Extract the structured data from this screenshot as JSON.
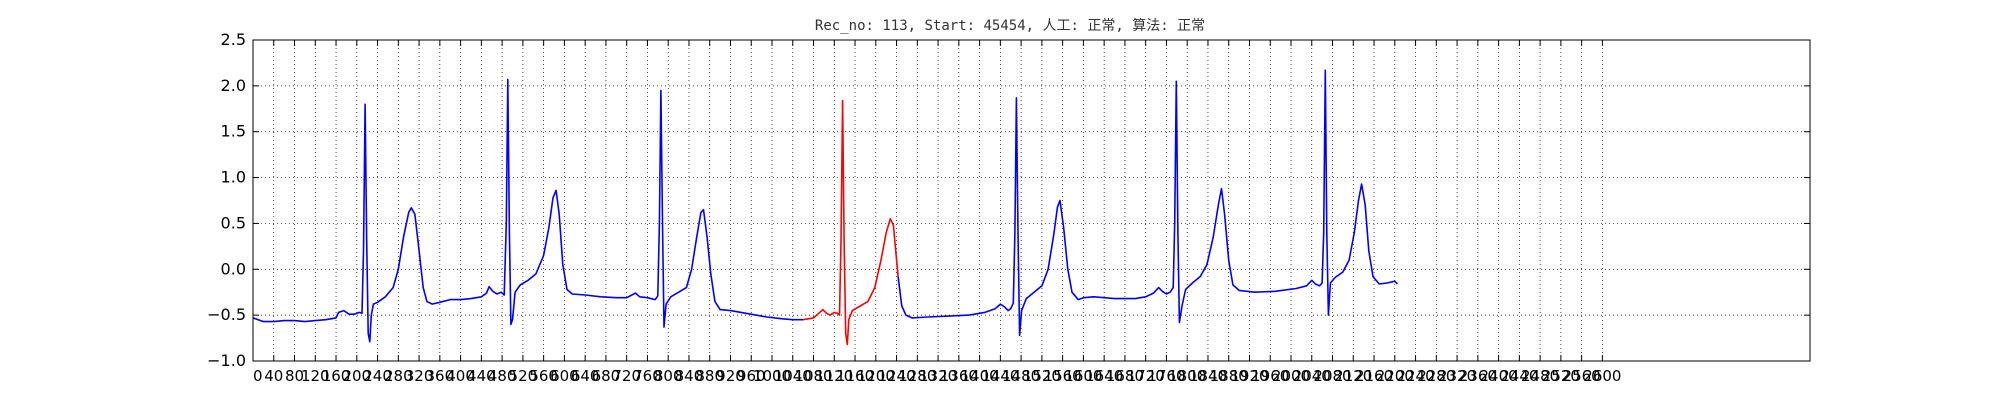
{
  "chart_data": {
    "type": "line",
    "title": "Rec_no: 113, Start: 45454, 人工: 正常, 算法: 正常",
    "xlabel": "",
    "ylabel": "",
    "xlim": [
      0,
      3000
    ],
    "ylim": [
      -1.0,
      2.5
    ],
    "grid": true,
    "grid_style": "dotted",
    "x_tick_values": [
      0,
      40,
      80,
      120,
      160,
      200,
      240,
      280,
      320,
      360,
      400,
      440,
      480,
      520,
      560,
      600,
      640,
      680,
      720,
      760,
      800,
      840,
      880,
      920,
      960,
      1000,
      1040,
      1080,
      1120,
      1160,
      1200,
      1240,
      1280,
      1320,
      1360,
      1400,
      1440,
      1480,
      1520,
      1560,
      1600,
      1640,
      1680,
      1720,
      1760,
      1800,
      1840,
      1880,
      1920,
      1960,
      2000,
      2040,
      2080,
      2120,
      2160,
      2200,
      2240,
      2280,
      2320,
      2360,
      2400,
      2440,
      2480,
      2520,
      2560,
      2600
    ],
    "y_ticks": [
      {
        "value": -1.0,
        "label": "−1.0"
      },
      {
        "value": -0.5,
        "label": "−0.5"
      },
      {
        "value": 0.0,
        "label": "0.0"
      },
      {
        "value": 0.5,
        "label": "0.5"
      },
      {
        "value": 1.0,
        "label": "1.0"
      },
      {
        "value": 1.5,
        "label": "1.5"
      },
      {
        "value": 2.0,
        "label": "2.0"
      },
      {
        "value": 2.5,
        "label": "2.5"
      }
    ],
    "series": [
      {
        "color": "#0000ff",
        "points": [
          [
            0,
            -0.53
          ],
          [
            20,
            -0.57
          ],
          [
            40,
            -0.57
          ],
          [
            60,
            -0.56
          ],
          [
            80,
            -0.56
          ],
          [
            100,
            -0.57
          ],
          [
            120,
            -0.56
          ],
          [
            140,
            -0.55
          ],
          [
            160,
            -0.53
          ],
          [
            165,
            -0.47
          ],
          [
            175,
            -0.45
          ],
          [
            185,
            -0.49
          ],
          [
            195,
            -0.49
          ],
          [
            205,
            -0.47
          ],
          [
            210,
            -0.48
          ],
          [
            213,
            0.2
          ],
          [
            216,
            1.8
          ],
          [
            219,
            0.3
          ],
          [
            222,
            -0.7
          ],
          [
            225,
            -0.79
          ],
          [
            228,
            -0.5
          ],
          [
            232,
            -0.38
          ],
          [
            240,
            -0.36
          ],
          [
            255,
            -0.3
          ],
          [
            270,
            -0.2
          ],
          [
            280,
            0.0
          ],
          [
            290,
            0.35
          ],
          [
            300,
            0.62
          ],
          [
            305,
            0.67
          ],
          [
            312,
            0.6
          ],
          [
            320,
            0.2
          ],
          [
            328,
            -0.2
          ],
          [
            335,
            -0.35
          ],
          [
            345,
            -0.38
          ],
          [
            360,
            -0.36
          ],
          [
            380,
            -0.33
          ],
          [
            400,
            -0.33
          ],
          [
            420,
            -0.32
          ],
          [
            440,
            -0.3
          ],
          [
            450,
            -0.26
          ],
          [
            455,
            -0.19
          ],
          [
            462,
            -0.24
          ],
          [
            470,
            -0.27
          ],
          [
            478,
            -0.25
          ],
          [
            484,
            -0.28
          ],
          [
            488,
            0.5
          ],
          [
            491,
            2.07
          ],
          [
            494,
            0.4
          ],
          [
            497,
            -0.6
          ],
          [
            500,
            -0.55
          ],
          [
            505,
            -0.25
          ],
          [
            515,
            -0.17
          ],
          [
            530,
            -0.12
          ],
          [
            545,
            -0.05
          ],
          [
            560,
            0.15
          ],
          [
            570,
            0.45
          ],
          [
            578,
            0.78
          ],
          [
            584,
            0.86
          ],
          [
            590,
            0.6
          ],
          [
            597,
            0.05
          ],
          [
            605,
            -0.22
          ],
          [
            615,
            -0.27
          ],
          [
            640,
            -0.28
          ],
          [
            670,
            -0.3
          ],
          [
            700,
            -0.31
          ],
          [
            720,
            -0.31
          ],
          [
            730,
            -0.28
          ],
          [
            737,
            -0.26
          ],
          [
            745,
            -0.3
          ],
          [
            760,
            -0.31
          ],
          [
            775,
            -0.33
          ],
          [
            780,
            -0.29
          ],
          [
            783,
            0.5
          ],
          [
            786,
            1.95
          ],
          [
            789,
            0.5
          ],
          [
            792,
            -0.63
          ],
          [
            796,
            -0.38
          ],
          [
            805,
            -0.3
          ],
          [
            820,
            -0.25
          ],
          [
            835,
            -0.2
          ],
          [
            845,
            0.0
          ],
          [
            855,
            0.35
          ],
          [
            863,
            0.62
          ],
          [
            868,
            0.65
          ],
          [
            875,
            0.35
          ],
          [
            882,
            -0.05
          ],
          [
            890,
            -0.35
          ],
          [
            900,
            -0.44
          ],
          [
            920,
            -0.45
          ],
          [
            950,
            -0.48
          ],
          [
            990,
            -0.52
          ],
          [
            1020,
            -0.54
          ],
          [
            1040,
            -0.55
          ],
          [
            1060,
            -0.55
          ]
        ]
      },
      {
        "color": "#ff0000",
        "points": [
          [
            1060,
            -0.55
          ],
          [
            1080,
            -0.53
          ],
          [
            1090,
            -0.48
          ],
          [
            1098,
            -0.44
          ],
          [
            1105,
            -0.48
          ],
          [
            1112,
            -0.5
          ],
          [
            1120,
            -0.47
          ],
          [
            1126,
            -0.48
          ],
          [
            1130,
            -0.5
          ],
          [
            1133,
            0.3
          ],
          [
            1136,
            1.84
          ],
          [
            1139,
            0.3
          ],
          [
            1142,
            -0.7
          ],
          [
            1145,
            -0.82
          ],
          [
            1148,
            -0.55
          ],
          [
            1155,
            -0.45
          ],
          [
            1170,
            -0.4
          ],
          [
            1185,
            -0.35
          ],
          [
            1198,
            -0.2
          ],
          [
            1210,
            0.1
          ],
          [
            1220,
            0.4
          ],
          [
            1228,
            0.55
          ],
          [
            1234,
            0.48
          ],
          [
            1240,
            0.1
          ],
          [
            1243,
            -0.08
          ]
        ]
      },
      {
        "color": "#0000ff",
        "points": [
          [
            1243,
            -0.08
          ],
          [
            1250,
            -0.4
          ],
          [
            1258,
            -0.5
          ],
          [
            1270,
            -0.53
          ],
          [
            1300,
            -0.52
          ],
          [
            1340,
            -0.51
          ],
          [
            1380,
            -0.5
          ],
          [
            1410,
            -0.47
          ],
          [
            1430,
            -0.43
          ],
          [
            1440,
            -0.38
          ],
          [
            1448,
            -0.41
          ],
          [
            1455,
            -0.45
          ],
          [
            1460,
            -0.43
          ],
          [
            1465,
            -0.37
          ],
          [
            1468,
            0.4
          ],
          [
            1471,
            1.87
          ],
          [
            1474,
            0.4
          ],
          [
            1477,
            -0.72
          ],
          [
            1481,
            -0.45
          ],
          [
            1490,
            -0.32
          ],
          [
            1505,
            -0.25
          ],
          [
            1520,
            -0.18
          ],
          [
            1532,
            0.0
          ],
          [
            1543,
            0.38
          ],
          [
            1550,
            0.68
          ],
          [
            1555,
            0.75
          ],
          [
            1562,
            0.45
          ],
          [
            1570,
            0.0
          ],
          [
            1578,
            -0.25
          ],
          [
            1590,
            -0.33
          ],
          [
            1600,
            -0.31
          ],
          [
            1620,
            -0.3
          ],
          [
            1660,
            -0.32
          ],
          [
            1700,
            -0.32
          ],
          [
            1720,
            -0.3
          ],
          [
            1735,
            -0.26
          ],
          [
            1745,
            -0.2
          ],
          [
            1752,
            -0.24
          ],
          [
            1760,
            -0.27
          ],
          [
            1767,
            -0.25
          ],
          [
            1773,
            -0.2
          ],
          [
            1776,
            0.5
          ],
          [
            1779,
            2.05
          ],
          [
            1782,
            0.4
          ],
          [
            1785,
            -0.58
          ],
          [
            1790,
            -0.4
          ],
          [
            1797,
            -0.22
          ],
          [
            1810,
            -0.15
          ],
          [
            1825,
            -0.08
          ],
          [
            1838,
            0.05
          ],
          [
            1850,
            0.35
          ],
          [
            1860,
            0.7
          ],
          [
            1866,
            0.88
          ],
          [
            1872,
            0.6
          ],
          [
            1880,
            0.1
          ],
          [
            1888,
            -0.17
          ],
          [
            1900,
            -0.23
          ],
          [
            1930,
            -0.25
          ],
          [
            1970,
            -0.24
          ],
          [
            2010,
            -0.21
          ],
          [
            2030,
            -0.18
          ],
          [
            2040,
            -0.12
          ],
          [
            2047,
            -0.16
          ],
          [
            2055,
            -0.18
          ],
          [
            2060,
            -0.15
          ],
          [
            2063,
            0.4
          ],
          [
            2066,
            2.17
          ],
          [
            2069,
            0.4
          ],
          [
            2072,
            -0.5
          ],
          [
            2076,
            -0.15
          ],
          [
            2085,
            -0.09
          ],
          [
            2100,
            -0.03
          ],
          [
            2112,
            0.1
          ],
          [
            2122,
            0.4
          ],
          [
            2130,
            0.75
          ],
          [
            2136,
            0.93
          ],
          [
            2143,
            0.7
          ],
          [
            2150,
            0.2
          ],
          [
            2158,
            -0.08
          ],
          [
            2170,
            -0.16
          ],
          [
            2185,
            -0.15
          ],
          [
            2200,
            -0.13
          ],
          [
            2205,
            -0.16
          ]
        ]
      }
    ]
  }
}
